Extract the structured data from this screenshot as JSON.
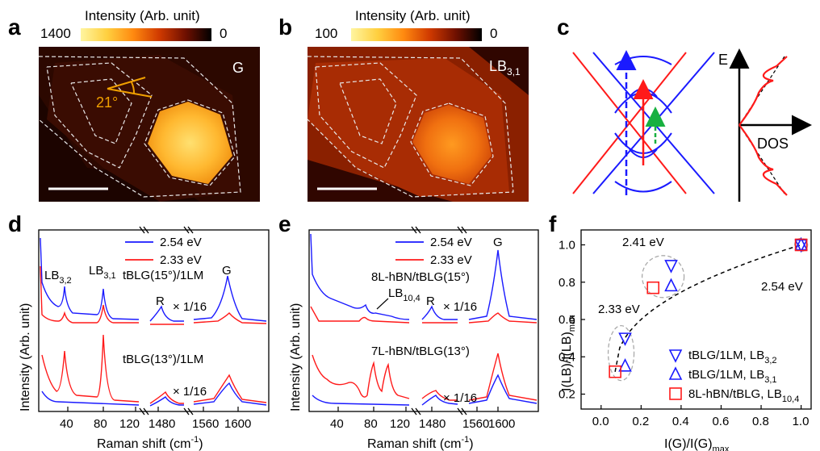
{
  "panel_letters": {
    "a": "a",
    "b": "b",
    "c": "c",
    "d": "d",
    "e": "e",
    "f": "f"
  },
  "panel_a": {
    "colorbar_title": "Intensity (Arb. unit)",
    "colorbar_max": "1400",
    "colorbar_min": "0",
    "band_label": "G",
    "angle_label": "21°"
  },
  "panel_b": {
    "colorbar_title": "Intensity (Arb. unit)",
    "colorbar_max": "100",
    "colorbar_min": "0",
    "band_label_main": "LB",
    "band_label_sub": "3,1"
  },
  "panel_c": {
    "e_label": "E",
    "dos_label": "DOS"
  },
  "chart_data": [
    {
      "panel": "d",
      "type": "line",
      "xlabel": "Raman shift (cm",
      "xlabel_sup": "-1",
      "xlabel_end": ")",
      "ylabel": "Intensity (Arb. unit)",
      "x_ticks": [
        "40",
        "80",
        "120",
        "1480",
        "1560",
        "1600"
      ],
      "legend": [
        "2.54 eV",
        "2.33 eV"
      ],
      "series_colors": [
        "#1a1aff",
        "#ff1a1a"
      ],
      "annotations": {
        "lb32": "LB",
        "lb32_sub": "3,2",
        "lb31": "LB",
        "lb31_sub": "3,1",
        "g": "G",
        "r": "R",
        "scale_top": "× 1/16",
        "scale_bottom": "× 1/16",
        "sample_top": "tBLG(15°)/1LM",
        "sample_bottom": "tBLG(13°)/1LM"
      }
    },
    {
      "panel": "e",
      "type": "line",
      "xlabel": "Raman shift (cm",
      "xlabel_sup": "-1",
      "xlabel_end": ")",
      "ylabel": "Intensity (Arb. unit)",
      "x_ticks": [
        "40",
        "80",
        "120",
        "1480",
        "1560",
        "1600"
      ],
      "legend": [
        "2.54 eV",
        "2.33 eV"
      ],
      "series_colors": [
        "#1a1aff",
        "#ff1a1a"
      ],
      "annotations": {
        "g": "G",
        "r": "R",
        "lb104": "LB",
        "lb104_sub": "10,4",
        "scale_top": "× 1/16",
        "scale_bottom": "× 1/16",
        "sample_top": "8L-hBN/tBLG(15°)",
        "sample_bottom": "7L-hBN/tBLG(13°)"
      }
    },
    {
      "panel": "f",
      "type": "scatter",
      "xlabel": "I(G)/I(G)",
      "xlabel_sub": "max",
      "ylabel": "I(LB)/I(LB)",
      "ylabel_sub": "max",
      "xlim": [
        -0.1,
        1.05
      ],
      "ylim": [
        0.12,
        1.08
      ],
      "x_ticks": [
        0.0,
        0.2,
        0.4,
        0.6,
        0.8,
        1.0
      ],
      "y_ticks": [
        0.2,
        0.4,
        0.6,
        0.8,
        1.0
      ],
      "series": [
        {
          "name": "tBLG/1LM, LB",
          "name_sub": "3,2",
          "marker": "triangle-down",
          "color": "#1a1aff",
          "points": [
            [
              0.12,
              0.5
            ],
            [
              0.35,
              0.89
            ],
            [
              1.0,
              1.0
            ]
          ]
        },
        {
          "name": "tBLG/1LM, LB",
          "name_sub": "3,1",
          "marker": "triangle-up",
          "color": "#1a1aff",
          "points": [
            [
              0.12,
              0.35
            ],
            [
              0.35,
              0.78
            ],
            [
              1.0,
              1.0
            ]
          ]
        },
        {
          "name": "8L-hBN/tBLG, LB",
          "name_sub": "10,4",
          "marker": "square",
          "color": "#ff1a1a",
          "points": [
            [
              0.07,
              0.32
            ],
            [
              0.26,
              0.77
            ],
            [
              1.0,
              1.0
            ]
          ]
        }
      ],
      "annotations": {
        "e233": "2.33 eV",
        "e241": "2.41 eV",
        "e254": "2.54 eV"
      }
    }
  ]
}
